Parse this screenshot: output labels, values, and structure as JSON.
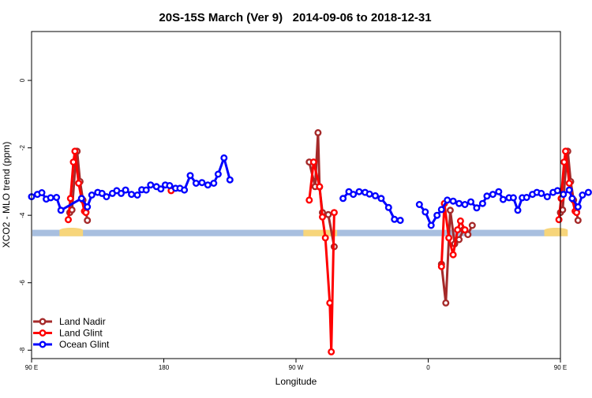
{
  "chart_data": {
    "type": "line",
    "title": "20S-15S March (Ver 9)   2014-09-06 to 2018-12-31",
    "xlabel": "Longitude",
    "ylabel": "XCO2 - MLO trend (ppm)",
    "xlim": [
      90,
      450
    ],
    "ylim": [
      -8.25,
      1.45
    ],
    "x_ticks": [
      {
        "value": 90,
        "label": "90 E"
      },
      {
        "value": 180,
        "label": "180"
      },
      {
        "value": 270,
        "label": "90 W"
      },
      {
        "value": 360,
        "label": "0"
      },
      {
        "value": 450,
        "label": "90 E"
      },
      {
        "value": 540,
        "label": "180"
      }
    ],
    "y_ticks": [
      {
        "value": 0,
        "label": "0"
      },
      {
        "value": -2,
        "label": "-2"
      },
      {
        "value": -4,
        "label": "-4"
      },
      {
        "value": -6,
        "label": "-6"
      },
      {
        "value": -8,
        "label": "-8"
      }
    ],
    "legend_position": "bottom-left",
    "series": [
      {
        "name": "Land Nadir",
        "color": "#a52a2a",
        "segments": [
          [
            [
              116,
              -3.92
            ],
            [
              117.5,
              -3.84
            ],
            [
              120,
              -2.42
            ],
            [
              121,
              -2.1
            ],
            [
              123,
              -3.0
            ],
            [
              125,
              -3.55
            ],
            [
              127,
              -3.9
            ],
            [
              128,
              -4.15
            ]
          ],
          [
            [
              279,
              -2.42
            ],
            [
              283,
              -3.15
            ],
            [
              285,
              -1.55
            ],
            [
              286,
              -3.16
            ],
            [
              288,
              -3.92
            ],
            [
              292,
              -3.98
            ],
            [
              296,
              -4.93
            ]
          ],
          [
            [
              369,
              -5.45
            ],
            [
              372,
              -6.6
            ],
            [
              375,
              -3.85
            ],
            [
              378,
              -4.85
            ],
            [
              381,
              -4.72
            ],
            [
              384,
              -4.43
            ],
            [
              387,
              -4.57
            ],
            [
              390,
              -4.3
            ]
          ],
          [
            [
              450,
              -3.92
            ],
            [
              451.5,
              -3.84
            ],
            [
              454,
              -2.42
            ],
            [
              455,
              -2.1
            ],
            [
              457,
              -3.0
            ],
            [
              459,
              -3.55
            ],
            [
              461,
              -3.9
            ],
            [
              462,
              -4.15
            ]
          ]
        ]
      },
      {
        "name": "Land Glint",
        "color": "#ff0000",
        "segments": [
          [
            [
              115,
              -4.13
            ],
            [
              116.5,
              -3.5
            ],
            [
              118.5,
              -2.42
            ],
            [
              119.5,
              -2.1
            ],
            [
              122,
              -3.05
            ],
            [
              124,
              -3.5
            ],
            [
              126,
              -3.88
            ],
            [
              127,
              -3.92
            ]
          ],
          [
            [
              185,
              -3.27
            ]
          ],
          [
            [
              279,
              -3.55
            ],
            [
              282,
              -2.42
            ],
            [
              286,
              -3.15
            ],
            [
              288,
              -4.05
            ],
            [
              290,
              -4.67
            ],
            [
              293,
              -6.6
            ],
            [
              294,
              -8.05
            ],
            [
              296,
              -3.92
            ]
          ],
          [
            [
              369,
              -5.52
            ],
            [
              371,
              -3.65
            ],
            [
              374,
              -4.67
            ],
            [
              377,
              -5.17
            ],
            [
              380,
              -4.43
            ],
            [
              382,
              -4.17
            ],
            [
              385,
              -4.43
            ]
          ],
          [
            [
              449,
              -4.13
            ],
            [
              450.5,
              -3.5
            ],
            [
              452.5,
              -2.42
            ],
            [
              453.5,
              -2.1
            ],
            [
              456,
              -3.05
            ],
            [
              458,
              -3.5
            ],
            [
              460,
              -3.88
            ],
            [
              461,
              -3.92
            ]
          ]
        ]
      },
      {
        "name": "Ocean Glint",
        "color": "#0000ff",
        "segments": [
          [
            [
              90,
              -3.45
            ],
            [
              94,
              -3.38
            ],
            [
              97,
              -3.33
            ],
            [
              100,
              -3.52
            ],
            [
              103,
              -3.48
            ],
            [
              107,
              -3.47
            ],
            [
              110,
              -3.85
            ],
            [
              124,
              -3.5
            ],
            [
              128,
              -3.75
            ],
            [
              131,
              -3.4
            ],
            [
              135,
              -3.32
            ],
            [
              138,
              -3.35
            ],
            [
              141,
              -3.45
            ],
            [
              145,
              -3.35
            ],
            [
              148,
              -3.27
            ],
            [
              151,
              -3.35
            ],
            [
              154,
              -3.25
            ],
            [
              158,
              -3.38
            ],
            [
              162,
              -3.4
            ],
            [
              165,
              -3.24
            ],
            [
              168,
              -3.25
            ],
            [
              171,
              -3.1
            ],
            [
              175,
              -3.15
            ],
            [
              178,
              -3.22
            ],
            [
              181,
              -3.1
            ],
            [
              184,
              -3.12
            ],
            [
              188,
              -3.2
            ],
            [
              191,
              -3.2
            ],
            [
              194,
              -3.25
            ],
            [
              198,
              -2.82
            ],
            [
              202,
              -3.05
            ],
            [
              206,
              -3.03
            ],
            [
              210,
              -3.1
            ],
            [
              214,
              -3.05
            ],
            [
              217,
              -2.78
            ],
            [
              221,
              -2.3
            ],
            [
              225,
              -2.95
            ]
          ],
          [
            [
              302,
              -3.5
            ],
            [
              306,
              -3.3
            ],
            [
              309,
              -3.38
            ],
            [
              313,
              -3.3
            ],
            [
              317,
              -3.32
            ],
            [
              320,
              -3.37
            ],
            [
              324,
              -3.42
            ],
            [
              328,
              -3.5
            ],
            [
              333,
              -3.77
            ],
            [
              337,
              -4.12
            ],
            [
              341,
              -4.15
            ]
          ],
          [
            [
              354,
              -3.68
            ],
            [
              358,
              -3.9
            ],
            [
              362,
              -4.3
            ],
            [
              366,
              -4.0
            ],
            [
              369,
              -3.83
            ],
            [
              373,
              -3.55
            ],
            [
              377,
              -3.58
            ],
            [
              381,
              -3.65
            ],
            [
              385,
              -3.68
            ],
            [
              389,
              -3.6
            ],
            [
              393,
              -3.78
            ],
            [
              397,
              -3.65
            ],
            [
              400,
              -3.43
            ],
            [
              404,
              -3.38
            ],
            [
              408,
              -3.3
            ],
            [
              411,
              -3.53
            ],
            [
              415,
              -3.48
            ],
            [
              418,
              -3.48
            ],
            [
              421,
              -3.85
            ],
            [
              424,
              -3.48
            ],
            [
              427,
              -3.47
            ],
            [
              431,
              -3.38
            ],
            [
              434,
              -3.32
            ],
            [
              437,
              -3.35
            ],
            [
              441,
              -3.45
            ],
            [
              445,
              -3.32
            ],
            [
              448,
              -3.27
            ],
            [
              452,
              -3.38
            ],
            [
              456,
              -3.25
            ],
            [
              458,
              -3.5
            ],
            [
              462,
              -3.75
            ],
            [
              465,
              -3.4
            ],
            [
              469,
              -3.32
            ]
          ]
        ]
      }
    ],
    "surface_band": {
      "y_range": [
        -4.62,
        -4.43
      ],
      "ocean_color": "#a8bfdf",
      "land_color": "#f7d57a",
      "land_spans": [
        {
          "x": [
            109,
            125
          ],
          "bump_top": -4.35
        },
        {
          "x": [
            275,
            298
          ],
          "bump_top": -4.43
        },
        {
          "x": [
            439,
            455
          ],
          "bump_top": -4.35
        }
      ]
    }
  }
}
